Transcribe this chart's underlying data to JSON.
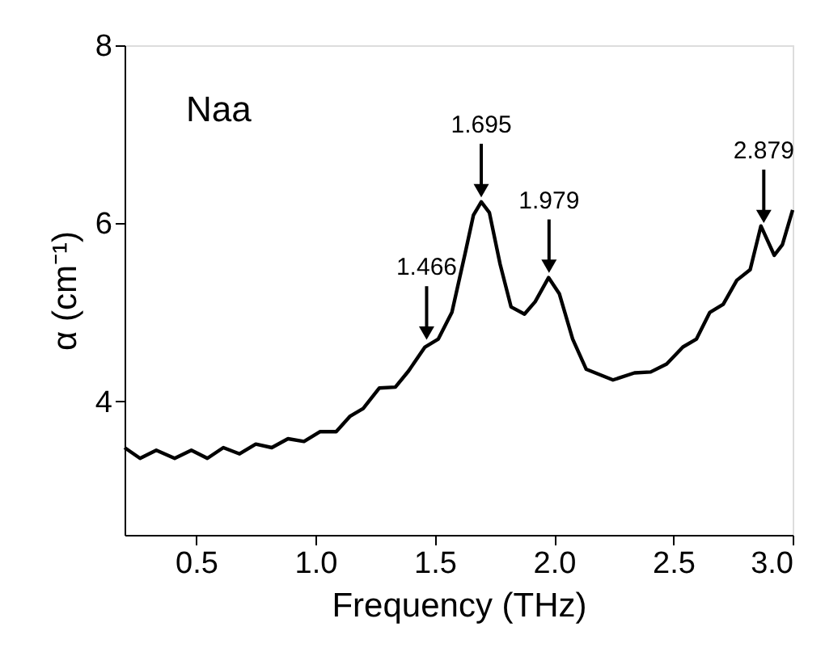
{
  "chart_data": {
    "type": "line",
    "xlabel": "Frequency (THz)",
    "ylabel": "α (cm⁻¹)",
    "xlim": [
      0.2,
      3.0
    ],
    "xticks": [
      0.5,
      {
        "value": 1,
        "label": "1.0"
      },
      1.5,
      {
        "value": 2,
        "label": "2.0"
      },
      2.5,
      {
        "value": 3,
        "label": "3.0"
      }
    ],
    "ylim": [
      2.5,
      8
    ],
    "yticks": [
      4,
      6,
      8
    ],
    "grid": false,
    "marker": "none",
    "line_style": "solid",
    "series": [
      {
        "color": "#000000",
        "x": [
          0.2,
          0.265,
          0.333,
          0.41,
          0.48,
          0.547,
          0.614,
          0.682,
          0.75,
          0.817,
          0.885,
          0.952,
          1.02,
          1.087,
          1.144,
          1.2,
          1.268,
          1.335,
          1.39,
          1.459,
          1.515,
          1.572,
          1.628,
          1.662,
          1.695,
          1.729,
          1.774,
          1.82,
          1.876,
          1.921,
          1.977,
          2.022,
          2.078,
          2.135,
          2.247,
          2.337,
          2.405,
          2.472,
          2.54,
          2.597,
          2.653,
          2.709,
          2.766,
          2.822,
          2.867,
          2.923,
          2.957,
          3.0
        ],
        "values": [
          3.48,
          3.36,
          3.45,
          3.36,
          3.45,
          3.36,
          3.48,
          3.41,
          3.52,
          3.48,
          3.58,
          3.55,
          3.66,
          3.66,
          3.83,
          3.92,
          4.15,
          4.16,
          4.34,
          4.61,
          4.7,
          5.0,
          5.67,
          6.09,
          6.24,
          6.12,
          5.54,
          5.06,
          4.98,
          5.12,
          5.39,
          5.21,
          4.7,
          4.36,
          4.24,
          4.32,
          4.33,
          4.42,
          4.61,
          4.7,
          5.0,
          5.09,
          5.36,
          5.48,
          5.97,
          5.64,
          5.76,
          6.15
        ]
      }
    ],
    "annotations": [
      "Naa",
      {
        "text": "1.466",
        "x": 1.466,
        "y": 4.64
      },
      {
        "text": "1.695",
        "x": 1.695,
        "y": 6.24
      },
      {
        "text": "1.979",
        "x": 1.979,
        "y": 5.39
      },
      {
        "text": "2.879",
        "x": 2.879,
        "y": 5.95
      }
    ]
  }
}
